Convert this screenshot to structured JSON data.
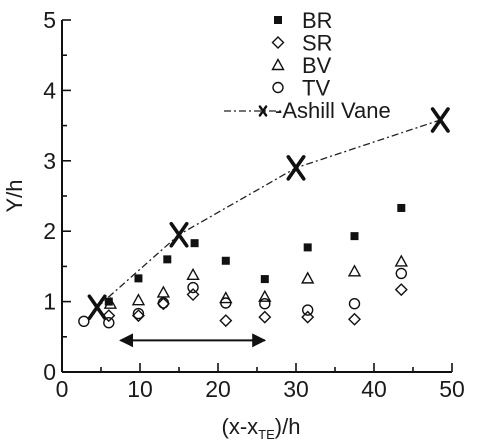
{
  "chart_data": {
    "type": "scatter",
    "xlabel": "(x-x",
    "xlabel_sub": "TE",
    "xlabel_end": ")/h",
    "ylabel": "Y/h",
    "xlim": [
      0,
      50
    ],
    "ylim": [
      0,
      5
    ],
    "x_ticks": [
      "0",
      "10",
      "20",
      "30",
      "40",
      "50"
    ],
    "y_ticks": [
      "0",
      "1",
      "2",
      "3",
      "4",
      "5"
    ],
    "grid": false,
    "legend_position": "top-right",
    "series": [
      {
        "name": "BR",
        "marker": "filled-square",
        "color": "#111111",
        "points": [
          [
            6.0,
            1.0
          ],
          [
            9.8,
            1.33
          ],
          [
            13.5,
            1.6
          ],
          [
            17.0,
            1.83
          ],
          [
            21.0,
            1.58
          ],
          [
            26.0,
            1.32
          ],
          [
            31.5,
            1.77
          ],
          [
            37.5,
            1.93
          ],
          [
            43.5,
            2.33
          ]
        ]
      },
      {
        "name": "SR",
        "marker": "open-diamond",
        "color": "#111111",
        "points": [
          [
            6.0,
            0.8
          ],
          [
            9.8,
            0.8
          ],
          [
            13.0,
            0.97
          ],
          [
            16.8,
            1.1
          ],
          [
            21.0,
            0.73
          ],
          [
            26.0,
            0.78
          ],
          [
            31.5,
            0.78
          ],
          [
            37.5,
            0.75
          ],
          [
            43.5,
            1.17
          ]
        ]
      },
      {
        "name": "BV",
        "marker": "open-triangle",
        "color": "#111111",
        "points": [
          [
            6.2,
            0.97
          ],
          [
            9.8,
            1.02
          ],
          [
            13.0,
            1.13
          ],
          [
            16.8,
            1.38
          ],
          [
            21.0,
            1.05
          ],
          [
            26.0,
            1.07
          ],
          [
            31.5,
            1.33
          ],
          [
            37.5,
            1.43
          ],
          [
            43.5,
            1.57
          ]
        ]
      },
      {
        "name": "TV",
        "marker": "open-circle",
        "color": "#111111",
        "points": [
          [
            2.8,
            0.72
          ],
          [
            6.0,
            0.7
          ],
          [
            9.8,
            0.83
          ],
          [
            13.0,
            0.98
          ],
          [
            16.8,
            1.2
          ],
          [
            21.0,
            0.98
          ],
          [
            26.0,
            0.97
          ],
          [
            31.5,
            0.88
          ],
          [
            37.5,
            0.97
          ],
          [
            43.5,
            1.4
          ]
        ]
      },
      {
        "name": "Ashill Vane",
        "marker": "x",
        "line": "dash-dot",
        "color": "#111111",
        "points": [
          [
            4.5,
            0.92
          ],
          [
            15.0,
            1.95
          ],
          [
            30.0,
            2.9
          ],
          [
            48.5,
            3.58
          ]
        ]
      }
    ],
    "annotation_arrow": {
      "from_x": 7.5,
      "to_x": 26.0,
      "y": 0.45,
      "double_headed": true
    }
  }
}
